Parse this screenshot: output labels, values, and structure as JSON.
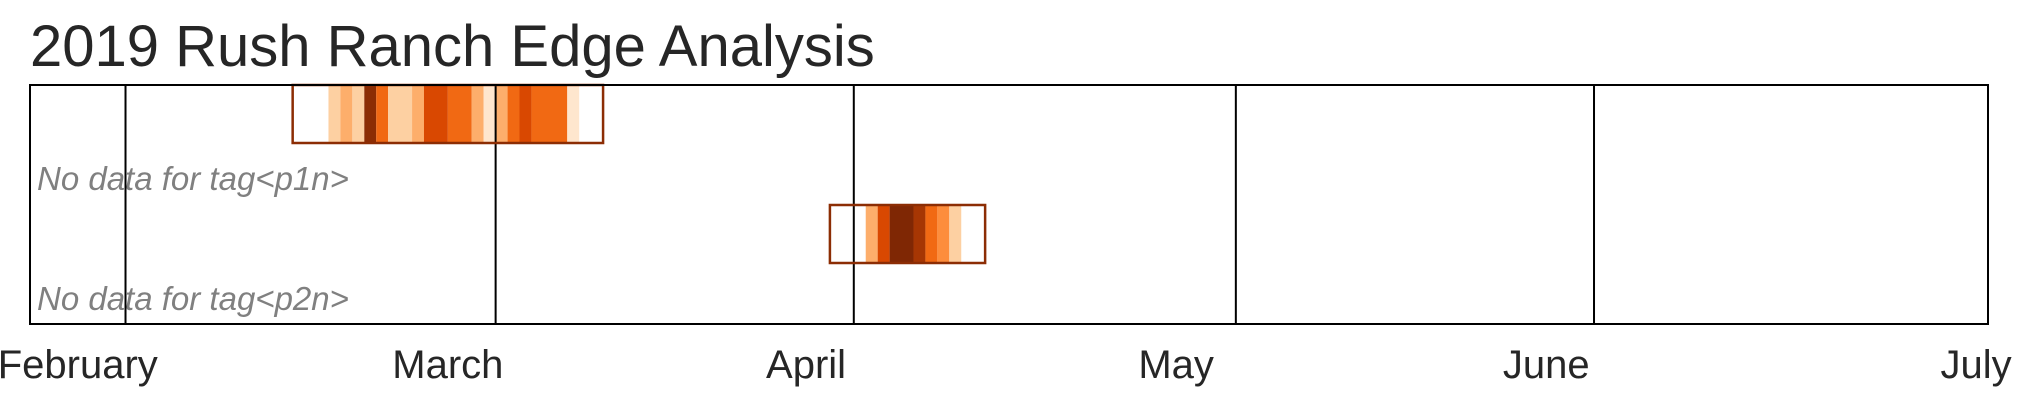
{
  "title": "2019 Rush Ranch Edge Analysis",
  "chart_data": {
    "type": "heatmap",
    "title": "2019 Rush Ranch Edge Analysis",
    "x_axis": {
      "type": "date",
      "range": [
        "2019-01-24",
        "2019-07-07"
      ],
      "month_labels": [
        {
          "label": "February",
          "at": "2019-01-28"
        },
        {
          "label": "March",
          "at": "2019-02-28"
        },
        {
          "label": "April",
          "at": "2019-03-30"
        },
        {
          "label": "May",
          "at": "2019-04-30"
        },
        {
          "label": "June",
          "at": "2019-05-31"
        },
        {
          "label": "July",
          "at": "2019-07-06"
        }
      ],
      "gridlines": [
        "2019-02-01",
        "2019-03-04",
        "2019-04-03",
        "2019-05-05",
        "2019-06-04"
      ]
    },
    "rows": [
      {
        "no_data_text": "No data for tag<p1n>",
        "range": [
          "2019-02-15",
          "2019-03-13"
        ],
        "bins": [
          {
            "start": "2019-02-18",
            "end": "2019-02-19",
            "color": "#fdd0a2"
          },
          {
            "start": "2019-02-19",
            "end": "2019-02-20",
            "color": "#fdae6b"
          },
          {
            "start": "2019-02-20",
            "end": "2019-02-21",
            "color": "#fdd0a2"
          },
          {
            "start": "2019-02-21",
            "end": "2019-02-22",
            "color": "#8c2d04"
          },
          {
            "start": "2019-02-22",
            "end": "2019-02-23",
            "color": "#f16913"
          },
          {
            "start": "2019-02-23",
            "end": "2019-02-25",
            "color": "#fdd0a2"
          },
          {
            "start": "2019-02-25",
            "end": "2019-02-26",
            "color": "#fdae6b"
          },
          {
            "start": "2019-02-26",
            "end": "2019-02-28",
            "color": "#d94801"
          },
          {
            "start": "2019-02-28",
            "end": "2019-03-02",
            "color": "#f16913"
          },
          {
            "start": "2019-03-02",
            "end": "2019-03-03",
            "color": "#fdae6b"
          },
          {
            "start": "2019-03-03",
            "end": "2019-03-04",
            "color": "#fee6ce"
          },
          {
            "start": "2019-03-04",
            "end": "2019-03-05",
            "color": "#fdae6b"
          },
          {
            "start": "2019-03-05",
            "end": "2019-03-06",
            "color": "#f16913"
          },
          {
            "start": "2019-03-06",
            "end": "2019-03-07",
            "color": "#d94801"
          },
          {
            "start": "2019-03-07",
            "end": "2019-03-10",
            "color": "#f16913"
          },
          {
            "start": "2019-03-10",
            "end": "2019-03-11",
            "color": "#fee6ce"
          }
        ]
      },
      {
        "no_data_text": "No data for tag<p2n>",
        "range": [
          "2019-04-01",
          "2019-04-14"
        ],
        "bins": [
          {
            "start": "2019-04-04",
            "end": "2019-04-05",
            "color": "#fdae6b"
          },
          {
            "start": "2019-04-05",
            "end": "2019-04-06",
            "color": "#d94801"
          },
          {
            "start": "2019-04-06",
            "end": "2019-04-08",
            "color": "#7f2704"
          },
          {
            "start": "2019-04-08",
            "end": "2019-04-09",
            "color": "#a63603"
          },
          {
            "start": "2019-04-09",
            "end": "2019-04-10",
            "color": "#f16913"
          },
          {
            "start": "2019-04-10",
            "end": "2019-04-11",
            "color": "#fd8d3c"
          },
          {
            "start": "2019-04-11",
            "end": "2019-04-12",
            "color": "#fdd0a2"
          }
        ]
      }
    ],
    "colors": {
      "box_border": "#8c2d04",
      "frame": "#000000",
      "no_data_text": "#808080"
    }
  }
}
